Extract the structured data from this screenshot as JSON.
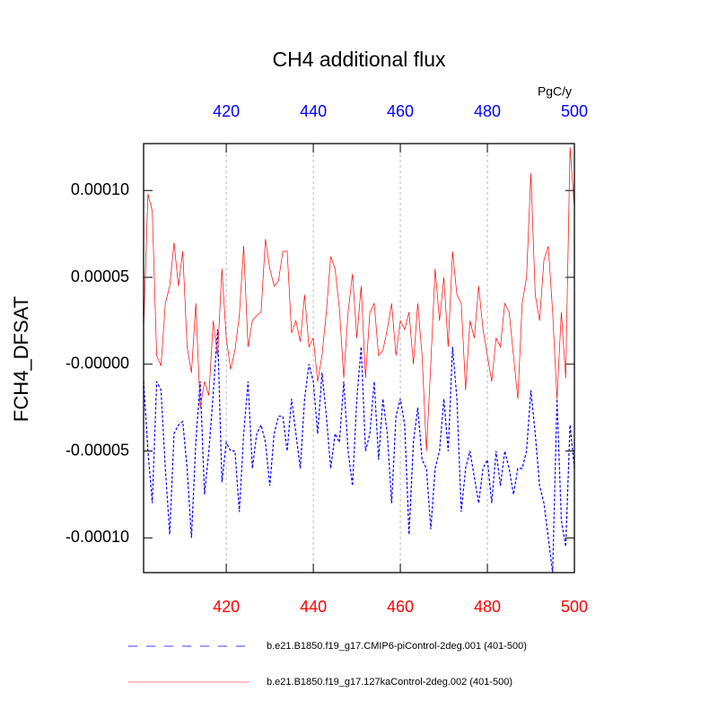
{
  "chart_data": {
    "type": "line",
    "title": "CH4 additional flux",
    "units": "PgC/y",
    "ylabel": "FCH4_DFSAT",
    "x": [
      401,
      402,
      403,
      404,
      405,
      406,
      407,
      408,
      409,
      410,
      411,
      412,
      413,
      414,
      415,
      416,
      417,
      418,
      419,
      420,
      421,
      422,
      423,
      424,
      425,
      426,
      427,
      428,
      429,
      430,
      431,
      432,
      433,
      434,
      435,
      436,
      437,
      438,
      439,
      440,
      441,
      442,
      443,
      444,
      445,
      446,
      447,
      448,
      449,
      450,
      451,
      452,
      453,
      454,
      455,
      456,
      457,
      458,
      459,
      460,
      461,
      462,
      463,
      464,
      465,
      466,
      467,
      468,
      469,
      470,
      471,
      472,
      473,
      474,
      475,
      476,
      477,
      478,
      479,
      480,
      481,
      482,
      483,
      484,
      485,
      486,
      487,
      488,
      489,
      490,
      491,
      492,
      493,
      494,
      495,
      496,
      497,
      498,
      499,
      500
    ],
    "xlim": [
      401,
      500
    ],
    "xticks": [
      420,
      440,
      460,
      480,
      500
    ],
    "xtick_colors": {
      "top": "#0000ff",
      "bottom": "#ff0000"
    },
    "ylim": [
      -0.00012,
      0.000127
    ],
    "yticks": [
      {
        "value": -0.0001,
        "label": "-0.00010"
      },
      {
        "value": -5e-05,
        "label": "-0.00005"
      },
      {
        "value": 0,
        "label": "-0.00000"
      },
      {
        "value": 5e-05,
        "label": "0.00005"
      },
      {
        "value": 0.0001,
        "label": "0.00010"
      }
    ],
    "grid": "x",
    "series": [
      {
        "name": "b.e21.B1850.f19_g17.CMIP6-piControl-2deg.001 (401-500)",
        "color": "#0000ff",
        "line_style": "dashed",
        "values": [
          -1e-05,
          -5e-05,
          -8e-05,
          -1e-05,
          -1.5e-05,
          -6e-05,
          -9.8e-05,
          -4e-05,
          -3.5e-05,
          -3.3e-05,
          -6e-05,
          -0.0001,
          -4.5e-05,
          -1e-05,
          -7.5e-05,
          -5e-05,
          -1.7e-05,
          2e-05,
          -6.8e-05,
          -4.5e-05,
          -5e-05,
          -5e-05,
          -8.5e-05,
          -4e-05,
          -1e-05,
          -6e-05,
          -4e-05,
          -3.5e-05,
          -4.5e-05,
          -7e-05,
          -4e-05,
          -3e-05,
          -3e-05,
          -5e-05,
          -2e-05,
          -4e-05,
          -6e-05,
          -2e-05,
          0.0,
          -1e-05,
          -4e-05,
          -5e-06,
          -3e-05,
          -6e-05,
          -4e-05,
          -4.5e-05,
          -1e-05,
          -5e-05,
          -7e-05,
          -2e-05,
          1e-05,
          -5e-05,
          -4e-05,
          -1e-05,
          -5.5e-05,
          -2e-05,
          -4e-05,
          -8e-05,
          -3e-05,
          -2e-05,
          -3.5e-05,
          -9.8e-05,
          -4.5e-05,
          -2.5e-05,
          -5.5e-05,
          -6e-05,
          -9.5e-05,
          -6e-05,
          -5e-05,
          -2e-05,
          -5e-05,
          1e-05,
          -2e-05,
          -8.5e-05,
          -6e-05,
          -5e-05,
          -6.5e-05,
          -8e-05,
          -6e-05,
          -5.5e-05,
          -8e-05,
          -5e-05,
          -7e-05,
          -5e-05,
          -6e-05,
          -7.5e-05,
          -6e-05,
          -6e-05,
          -5e-05,
          -1.5e-05,
          -4e-05,
          -7e-05,
          -8e-05,
          -0.0001,
          -0.00012,
          -2e-05,
          -9e-05,
          -0.000105,
          -3.5e-05,
          -6e-05
        ]
      },
      {
        "name": "b.e21.B1850.f19_g17.127kaControl-2deg.002 (401-500)",
        "color": "#ff0000",
        "line_style": "solid",
        "values": [
          2e-05,
          9.8e-05,
          8.8e-05,
          5e-06,
          -1e-06,
          3.5e-05,
          4.5e-05,
          7e-05,
          4.5e-05,
          6.5e-05,
          1e-05,
          -5e-06,
          3.5e-05,
          -2.5e-05,
          -1e-05,
          -1.8e-05,
          2.5e-05,
          5e-06,
          5.5e-05,
          1.5e-05,
          -3e-06,
          8e-06,
          2.8e-05,
          6.8e-05,
          1e-05,
          2.5e-05,
          2.8e-05,
          3e-05,
          7.2e-05,
          5.5e-05,
          4.5e-05,
          4.8e-05,
          6.5e-05,
          6.5e-05,
          1.8e-05,
          2.5e-05,
          1.3e-05,
          4e-05,
          1e-05,
          1.5e-05,
          -1e-05,
          5e-06,
          3e-05,
          6.2e-05,
          5.5e-05,
          3.2e-05,
          -8e-06,
          3e-05,
          5.2e-05,
          1.5e-05,
          4.5e-05,
          -8e-06,
          3e-05,
          3.5e-05,
          5e-06,
          8e-06,
          2e-05,
          3.5e-05,
          5e-06,
          2.5e-05,
          2e-05,
          3e-05,
          0.0,
          3.5e-05,
          5e-06,
          -5e-05,
          0.0,
          5.5e-05,
          2.5e-05,
          5e-05,
          1e-05,
          6.5e-05,
          4e-05,
          3.5e-05,
          -1.5e-05,
          2.5e-05,
          1.5e-05,
          4.5e-05,
          2e-05,
          5e-06,
          -1e-05,
          1.5e-05,
          1e-05,
          3.5e-05,
          3e-05,
          5e-06,
          -2e-05,
          3.5e-05,
          5e-05,
          0.00011,
          4e-05,
          2.5e-05,
          6e-05,
          6.8e-05,
          3e-05,
          -2e-05,
          3e-05,
          -8e-06,
          0.000125,
          9e-05
        ]
      }
    ]
  }
}
